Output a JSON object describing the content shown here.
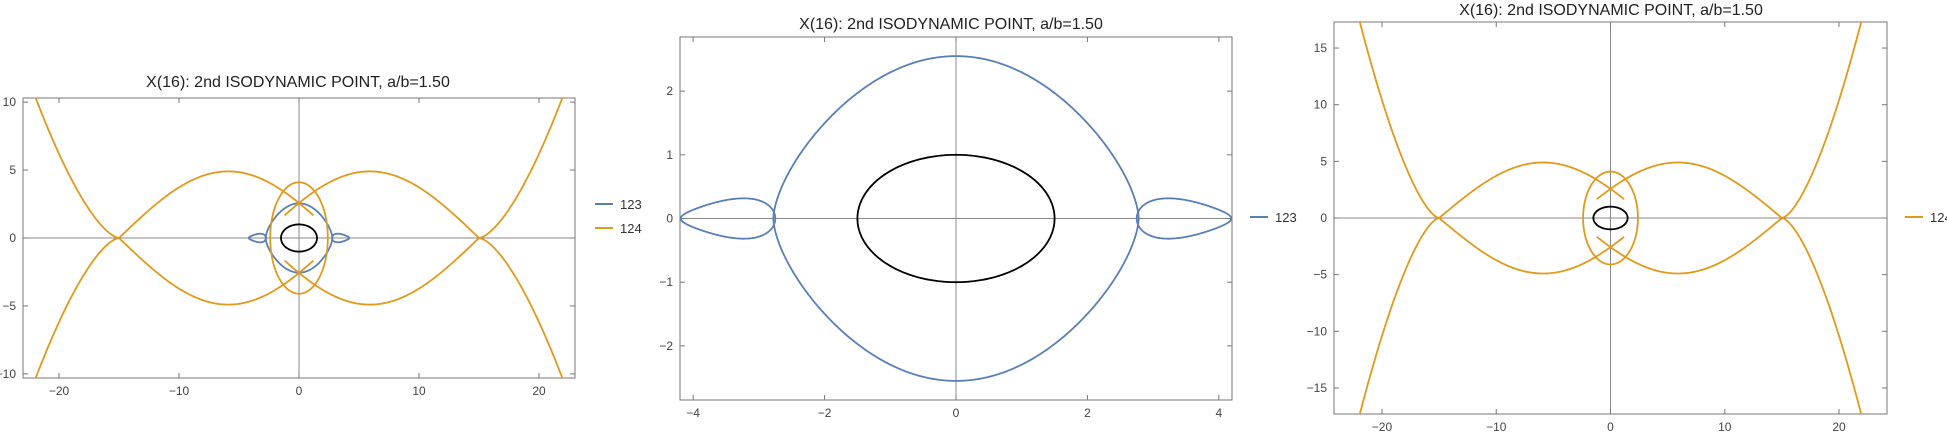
{
  "colors": {
    "series_123": "#5a7fb5",
    "series_124": "#e09a1c",
    "ellipse": "#000000",
    "axis": "#888888",
    "frame": "#777777"
  },
  "chart_data": [
    {
      "type": "line",
      "title": "X(16): 2nd ISODYNAMIC POINT, a/b=1.50",
      "xlim": [
        -23,
        23
      ],
      "ylim": [
        -10.3,
        10.3
      ],
      "xticks": [
        -20,
        -10,
        0,
        10,
        20
      ],
      "yticks": [
        -10,
        -5,
        0,
        5,
        10
      ],
      "legend_position": "right",
      "series": [
        {
          "name": "123",
          "color_key": "series_123",
          "kind": "curve123"
        },
        {
          "name": "124",
          "color_key": "series_124",
          "kind": "curve124"
        },
        {
          "name": "",
          "color_key": "ellipse",
          "kind": "ellipse",
          "a": 1.5,
          "b": 1
        }
      ]
    },
    {
      "type": "line",
      "title": "X(16): 2nd ISODYNAMIC POINT, a/b=1.50",
      "xlim": [
        -4.2,
        4.2
      ],
      "ylim": [
        -2.85,
        2.85
      ],
      "xticks": [
        -4,
        -2,
        0,
        2,
        4
      ],
      "yticks": [
        -2,
        -1,
        0,
        1,
        2
      ],
      "legend_position": "right",
      "series": [
        {
          "name": "123",
          "color_key": "series_123",
          "kind": "curve123"
        },
        {
          "name": "",
          "color_key": "ellipse",
          "kind": "ellipse",
          "a": 1.5,
          "b": 1
        }
      ]
    },
    {
      "type": "line",
      "title": "X(16): 2nd ISODYNAMIC POINT, a/b=1.50",
      "xlim": [
        -24.2,
        24.2
      ],
      "ylim": [
        -17.3,
        17.3
      ],
      "xticks": [
        -20,
        -10,
        0,
        10,
        20
      ],
      "yticks": [
        -15,
        -10,
        -5,
        0,
        5,
        10,
        15
      ],
      "legend_position": "right",
      "series": [
        {
          "name": "124",
          "color_key": "series_124",
          "kind": "curve124"
        },
        {
          "name": "",
          "color_key": "ellipse",
          "kind": "ellipse",
          "a": 1.5,
          "b": 1
        }
      ]
    }
  ]
}
